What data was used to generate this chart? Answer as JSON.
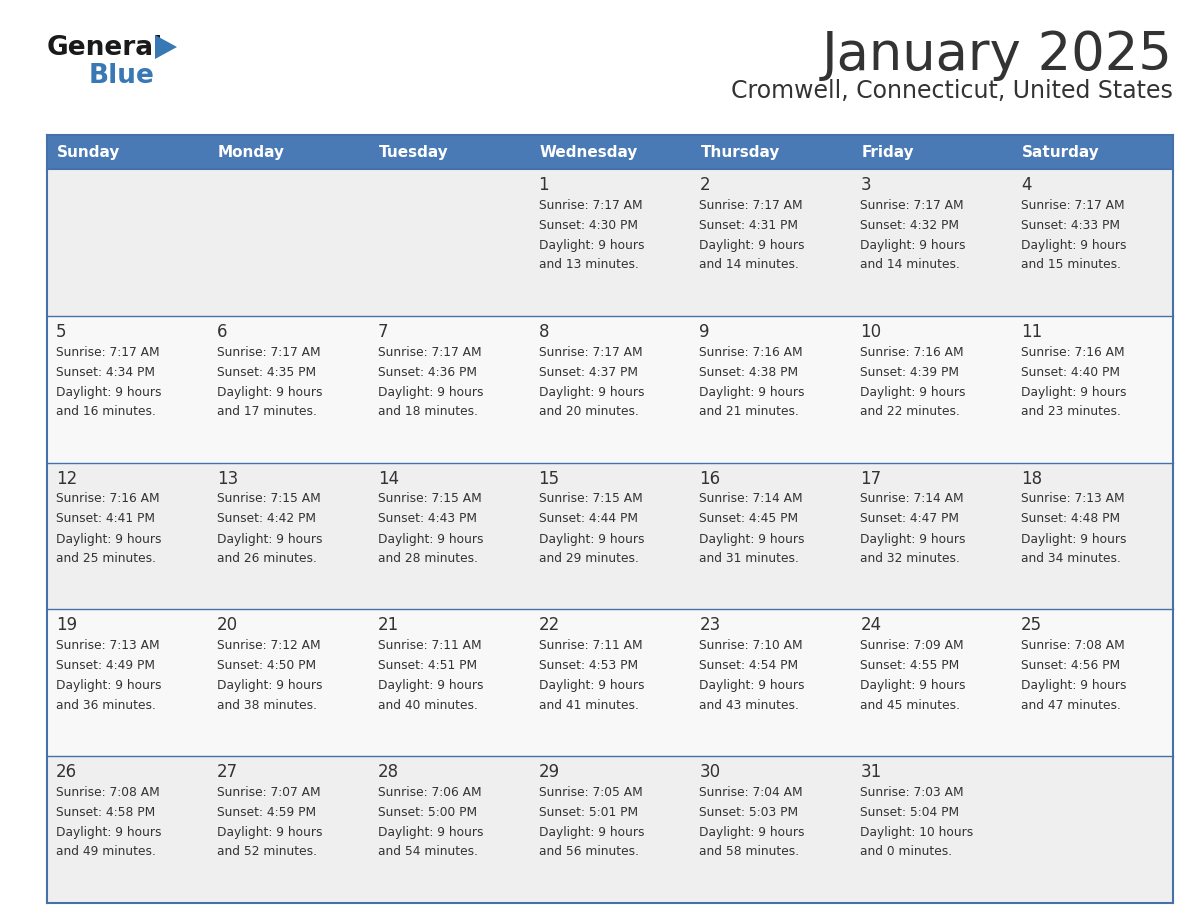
{
  "title": "January 2025",
  "subtitle": "Cromwell, Connecticut, United States",
  "header_bg": "#4a7ab5",
  "header_text": "#ffffff",
  "day_names": [
    "Sunday",
    "Monday",
    "Tuesday",
    "Wednesday",
    "Thursday",
    "Friday",
    "Saturday"
  ],
  "cell_bg_odd": "#efefef",
  "cell_bg_even": "#f8f8f8",
  "divider_color": "#4472a8",
  "text_color": "#333333",
  "days": [
    {
      "day": 1,
      "col": 3,
      "row": 0,
      "sunrise": "7:17 AM",
      "sunset": "4:30 PM",
      "daylight": "9 hours and 13 minutes."
    },
    {
      "day": 2,
      "col": 4,
      "row": 0,
      "sunrise": "7:17 AM",
      "sunset": "4:31 PM",
      "daylight": "9 hours and 14 minutes."
    },
    {
      "day": 3,
      "col": 5,
      "row": 0,
      "sunrise": "7:17 AM",
      "sunset": "4:32 PM",
      "daylight": "9 hours and 14 minutes."
    },
    {
      "day": 4,
      "col": 6,
      "row": 0,
      "sunrise": "7:17 AM",
      "sunset": "4:33 PM",
      "daylight": "9 hours and 15 minutes."
    },
    {
      "day": 5,
      "col": 0,
      "row": 1,
      "sunrise": "7:17 AM",
      "sunset": "4:34 PM",
      "daylight": "9 hours and 16 minutes."
    },
    {
      "day": 6,
      "col": 1,
      "row": 1,
      "sunrise": "7:17 AM",
      "sunset": "4:35 PM",
      "daylight": "9 hours and 17 minutes."
    },
    {
      "day": 7,
      "col": 2,
      "row": 1,
      "sunrise": "7:17 AM",
      "sunset": "4:36 PM",
      "daylight": "9 hours and 18 minutes."
    },
    {
      "day": 8,
      "col": 3,
      "row": 1,
      "sunrise": "7:17 AM",
      "sunset": "4:37 PM",
      "daylight": "9 hours and 20 minutes."
    },
    {
      "day": 9,
      "col": 4,
      "row": 1,
      "sunrise": "7:16 AM",
      "sunset": "4:38 PM",
      "daylight": "9 hours and 21 minutes."
    },
    {
      "day": 10,
      "col": 5,
      "row": 1,
      "sunrise": "7:16 AM",
      "sunset": "4:39 PM",
      "daylight": "9 hours and 22 minutes."
    },
    {
      "day": 11,
      "col": 6,
      "row": 1,
      "sunrise": "7:16 AM",
      "sunset": "4:40 PM",
      "daylight": "9 hours and 23 minutes."
    },
    {
      "day": 12,
      "col": 0,
      "row": 2,
      "sunrise": "7:16 AM",
      "sunset": "4:41 PM",
      "daylight": "9 hours and 25 minutes."
    },
    {
      "day": 13,
      "col": 1,
      "row": 2,
      "sunrise": "7:15 AM",
      "sunset": "4:42 PM",
      "daylight": "9 hours and 26 minutes."
    },
    {
      "day": 14,
      "col": 2,
      "row": 2,
      "sunrise": "7:15 AM",
      "sunset": "4:43 PM",
      "daylight": "9 hours and 28 minutes."
    },
    {
      "day": 15,
      "col": 3,
      "row": 2,
      "sunrise": "7:15 AM",
      "sunset": "4:44 PM",
      "daylight": "9 hours and 29 minutes."
    },
    {
      "day": 16,
      "col": 4,
      "row": 2,
      "sunrise": "7:14 AM",
      "sunset": "4:45 PM",
      "daylight": "9 hours and 31 minutes."
    },
    {
      "day": 17,
      "col": 5,
      "row": 2,
      "sunrise": "7:14 AM",
      "sunset": "4:47 PM",
      "daylight": "9 hours and 32 minutes."
    },
    {
      "day": 18,
      "col": 6,
      "row": 2,
      "sunrise": "7:13 AM",
      "sunset": "4:48 PM",
      "daylight": "9 hours and 34 minutes."
    },
    {
      "day": 19,
      "col": 0,
      "row": 3,
      "sunrise": "7:13 AM",
      "sunset": "4:49 PM",
      "daylight": "9 hours and 36 minutes."
    },
    {
      "day": 20,
      "col": 1,
      "row": 3,
      "sunrise": "7:12 AM",
      "sunset": "4:50 PM",
      "daylight": "9 hours and 38 minutes."
    },
    {
      "day": 21,
      "col": 2,
      "row": 3,
      "sunrise": "7:11 AM",
      "sunset": "4:51 PM",
      "daylight": "9 hours and 40 minutes."
    },
    {
      "day": 22,
      "col": 3,
      "row": 3,
      "sunrise": "7:11 AM",
      "sunset": "4:53 PM",
      "daylight": "9 hours and 41 minutes."
    },
    {
      "day": 23,
      "col": 4,
      "row": 3,
      "sunrise": "7:10 AM",
      "sunset": "4:54 PM",
      "daylight": "9 hours and 43 minutes."
    },
    {
      "day": 24,
      "col": 5,
      "row": 3,
      "sunrise": "7:09 AM",
      "sunset": "4:55 PM",
      "daylight": "9 hours and 45 minutes."
    },
    {
      "day": 25,
      "col": 6,
      "row": 3,
      "sunrise": "7:08 AM",
      "sunset": "4:56 PM",
      "daylight": "9 hours and 47 minutes."
    },
    {
      "day": 26,
      "col": 0,
      "row": 4,
      "sunrise": "7:08 AM",
      "sunset": "4:58 PM",
      "daylight": "9 hours and 49 minutes."
    },
    {
      "day": 27,
      "col": 1,
      "row": 4,
      "sunrise": "7:07 AM",
      "sunset": "4:59 PM",
      "daylight": "9 hours and 52 minutes."
    },
    {
      "day": 28,
      "col": 2,
      "row": 4,
      "sunrise": "7:06 AM",
      "sunset": "5:00 PM",
      "daylight": "9 hours and 54 minutes."
    },
    {
      "day": 29,
      "col": 3,
      "row": 4,
      "sunrise": "7:05 AM",
      "sunset": "5:01 PM",
      "daylight": "9 hours and 56 minutes."
    },
    {
      "day": 30,
      "col": 4,
      "row": 4,
      "sunrise": "7:04 AM",
      "sunset": "5:03 PM",
      "daylight": "9 hours and 58 minutes."
    },
    {
      "day": 31,
      "col": 5,
      "row": 4,
      "sunrise": "7:03 AM",
      "sunset": "5:04 PM",
      "daylight": "10 hours and 0 minutes."
    }
  ],
  "logo_text1": "General",
  "logo_text2": "Blue",
  "logo_color1": "#1a1a1a",
  "logo_color2": "#3878b4",
  "triangle_color": "#3878b4"
}
